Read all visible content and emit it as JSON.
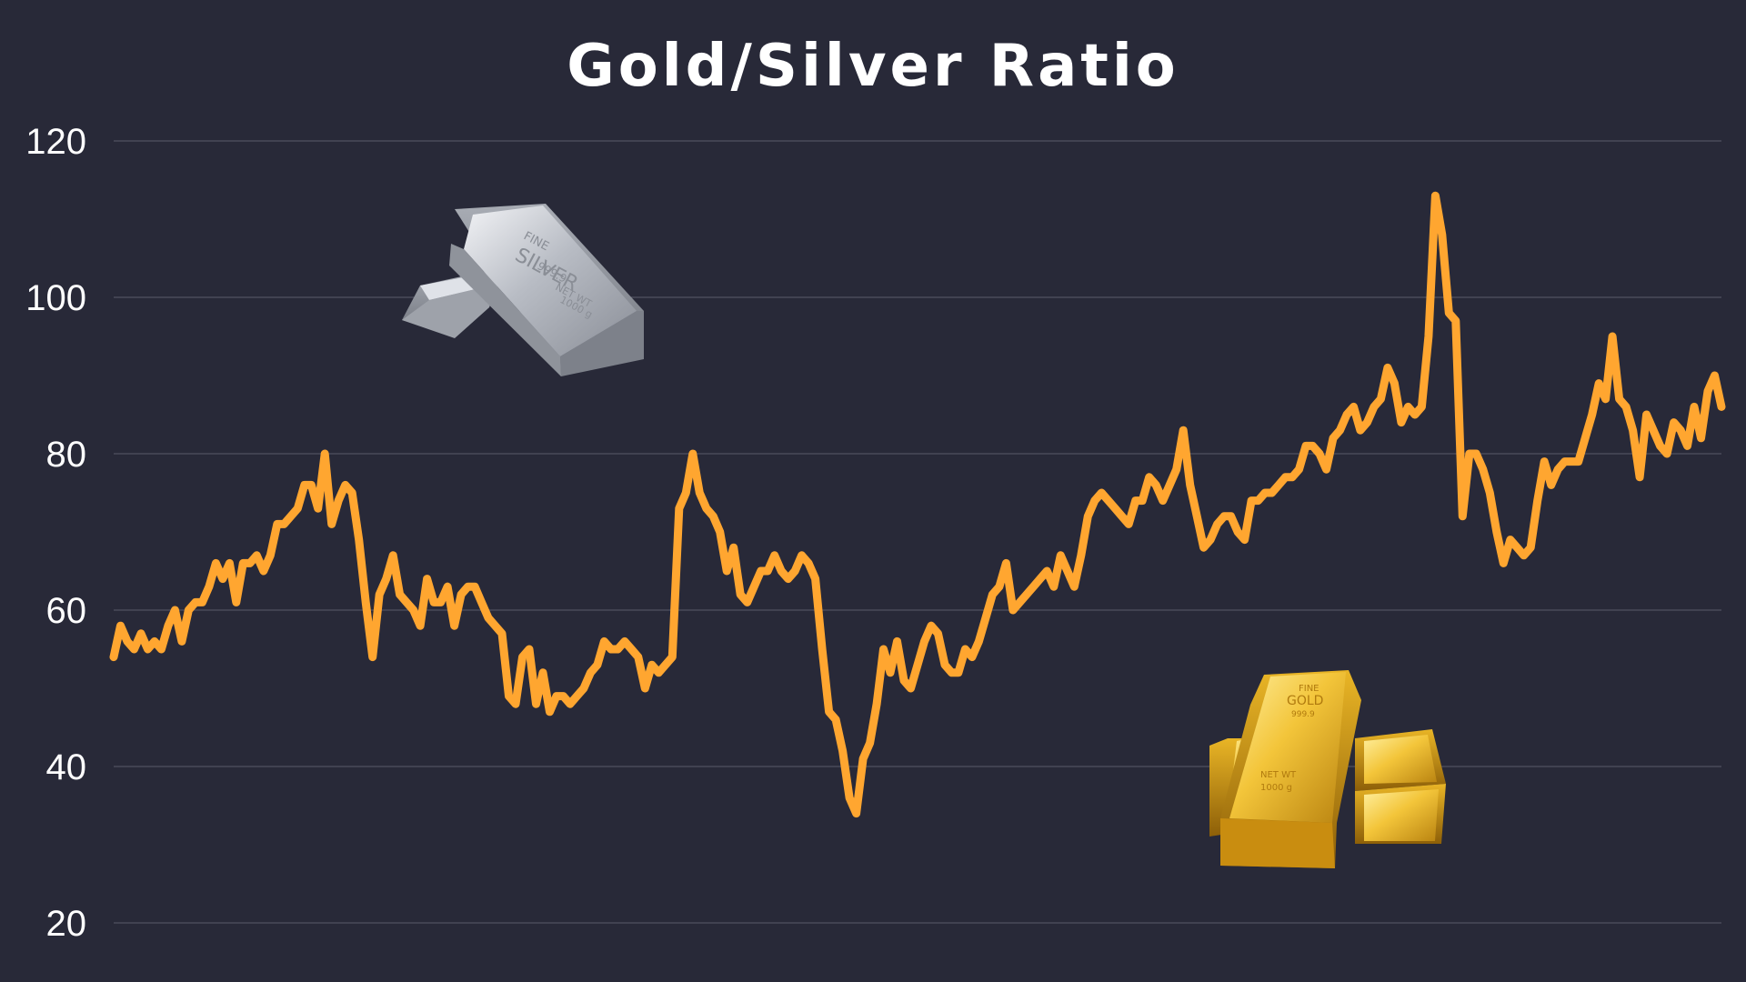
{
  "title": "Gold/Silver Ratio",
  "colors": {
    "background": "#282938",
    "line": "#FFA630",
    "grid": "#5a5b6a",
    "text": "#ffffff"
  },
  "images": [
    {
      "name": "silver-bars",
      "icon": "silver-bullion-bars-image",
      "text": "FINE SILVER 999.9 NET WT 1000 g"
    },
    {
      "name": "gold-bars",
      "icon": "gold-bullion-bars-image",
      "text": "FINE GOLD 999.9 NET WT 1000 g"
    }
  ],
  "chart_data": {
    "type": "line",
    "title": "Gold/Silver Ratio",
    "xlabel": "",
    "ylabel": "",
    "ylim": [
      20,
      120
    ],
    "yticks": [
      20,
      40,
      60,
      80,
      100,
      120
    ],
    "grid": true,
    "x_axis_labels_shown": false,
    "series": [
      {
        "color": "#FFA630",
        "values": [
          54,
          58,
          56,
          55,
          57,
          55,
          56,
          55,
          58,
          60,
          56,
          60,
          61,
          61,
          63,
          66,
          64,
          66,
          61,
          66,
          66,
          67,
          65,
          67,
          71,
          71,
          72,
          73,
          76,
          76,
          73,
          80,
          71,
          74,
          76,
          75,
          69,
          61,
          54,
          62,
          64,
          67,
          62,
          61,
          60,
          58,
          64,
          61,
          61,
          63,
          58,
          62,
          63,
          63,
          61,
          59,
          58,
          57,
          49,
          48,
          54,
          55,
          48,
          52,
          47,
          49,
          49,
          48,
          49,
          50,
          52,
          53,
          56,
          55,
          55,
          56,
          55,
          54,
          50,
          53,
          52,
          53,
          54,
          73,
          75,
          80,
          75,
          73,
          72,
          70,
          65,
          68,
          62,
          61,
          63,
          65,
          65,
          67,
          65,
          64,
          65,
          67,
          66,
          64,
          55,
          47,
          46,
          42,
          36,
          34,
          41,
          43,
          48,
          55,
          52,
          56,
          51,
          50,
          53,
          56,
          58,
          57,
          53,
          52,
          52,
          55,
          54,
          56,
          59,
          62,
          63,
          66,
          60,
          61,
          62,
          63,
          64,
          65,
          63,
          67,
          65,
          63,
          67,
          72,
          74,
          75,
          74,
          73,
          72,
          71,
          74,
          74,
          77,
          76,
          74,
          76,
          78,
          83,
          76,
          72,
          68,
          69,
          71,
          72,
          72,
          70,
          69,
          74,
          74,
          75,
          75,
          76,
          77,
          77,
          78,
          81,
          81,
          80,
          78,
          82,
          83,
          85,
          86,
          83,
          84,
          86,
          87,
          91,
          89,
          84,
          86,
          85,
          86,
          95,
          113,
          108,
          98,
          97,
          72,
          80,
          80,
          78,
          75,
          70,
          66,
          69,
          68,
          67,
          68,
          74,
          79,
          76,
          78,
          79,
          79,
          79,
          82,
          85,
          89,
          87,
          95,
          87,
          86,
          83,
          77,
          85,
          83,
          81,
          80,
          84,
          83,
          81,
          86,
          82,
          88,
          90,
          86
        ]
      }
    ]
  }
}
